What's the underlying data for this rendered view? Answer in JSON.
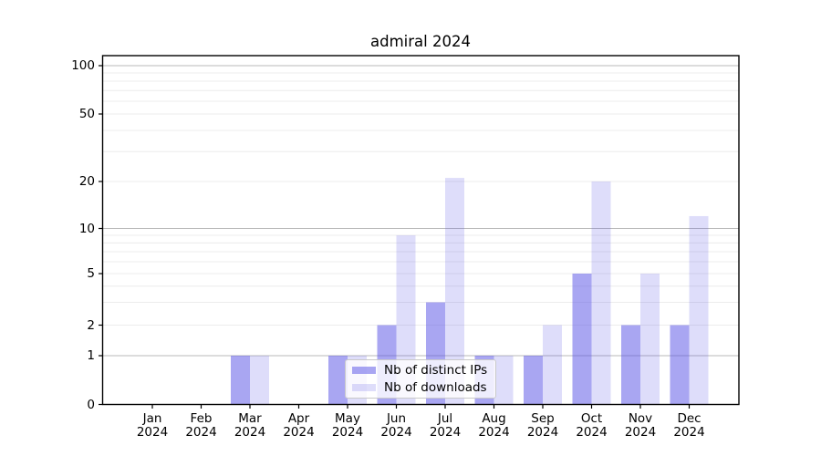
{
  "title": "admiral 2024",
  "chart_data": {
    "type": "bar",
    "title": "admiral 2024",
    "months": [
      "Jan",
      "Feb",
      "Mar",
      "Apr",
      "May",
      "Jun",
      "Jul",
      "Aug",
      "Sep",
      "Oct",
      "Nov",
      "Dec"
    ],
    "year": "2024",
    "series": [
      {
        "name": "Nb of distinct IPs",
        "color": "rgba(90,85,230,0.52)",
        "values": [
          0,
          0,
          1,
          0,
          1,
          2,
          3,
          1,
          1,
          5,
          2,
          2
        ]
      },
      {
        "name": "Nb of downloads",
        "color": "rgba(90,85,230,0.20)",
        "values": [
          0,
          0,
          1,
          0,
          1,
          9,
          21,
          1,
          2,
          20,
          5,
          12
        ]
      }
    ],
    "y_axis": {
      "scale": "log above 1, linear segment between 0 and 1",
      "tick_labels": [
        "0",
        "1",
        "2",
        "5",
        "10",
        "20",
        "50",
        "100"
      ],
      "tick_values": [
        0,
        1,
        2,
        5,
        10,
        20,
        50,
        100
      ],
      "range": [
        0,
        115
      ]
    },
    "gridlines": {
      "major_values": [
        1,
        10,
        100
      ],
      "minor_values": [
        2,
        3,
        4,
        5,
        6,
        7,
        8,
        9,
        20,
        30,
        40,
        50,
        60,
        70,
        80,
        90
      ],
      "major_color": "#b8b8b8",
      "minor_color": "#ececec"
    },
    "legend_position": "lower center (overlapping May-Aug bars, semi-transparent)"
  }
}
